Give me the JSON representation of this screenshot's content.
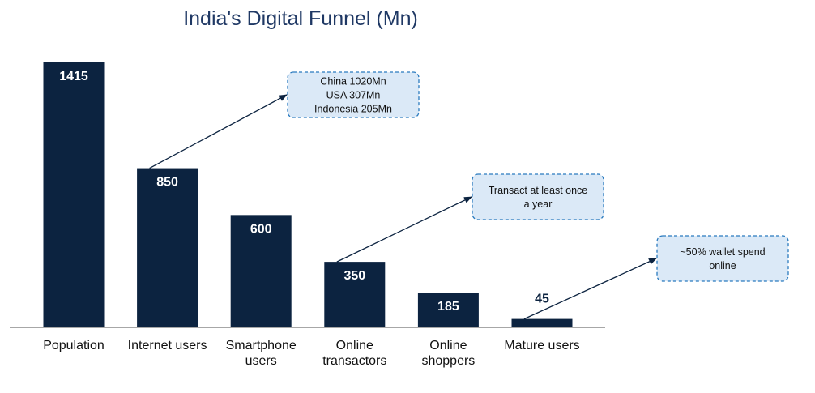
{
  "chart_data": {
    "type": "bar",
    "title": "India's Digital Funnel (Mn)",
    "xlabel": "",
    "ylabel": "",
    "ylim": [
      0,
      1415
    ],
    "grid": false,
    "legend": "none",
    "categories": [
      [
        "Population"
      ],
      [
        "Internet users"
      ],
      [
        "Smartphone",
        "users"
      ],
      [
        "Online",
        "transactors"
      ],
      [
        "Online",
        "shoppers"
      ],
      [
        "Mature users"
      ]
    ],
    "values": [
      1415,
      850,
      600,
      350,
      185,
      45
    ],
    "data_labels": [
      "1415",
      "850",
      "600",
      "350",
      "185",
      "45"
    ],
    "bar_color": "#0c2340",
    "label_color_inside": "#ffffff",
    "label_color_outside": "#0c2340",
    "callouts": [
      {
        "from_bar": 1,
        "lines": [
          "China 1020Mn",
          "USA 307Mn",
          "Indonesia 205Mn"
        ]
      },
      {
        "from_bar": 3,
        "lines": [
          "Transact at least once",
          "a year"
        ]
      },
      {
        "from_bar": 5,
        "lines": [
          "~50% wallet spend",
          "online"
        ]
      }
    ],
    "callout_fill": "#dbe9f7",
    "callout_border": "#2b7bbf",
    "arrow_color": "#0c2340"
  }
}
